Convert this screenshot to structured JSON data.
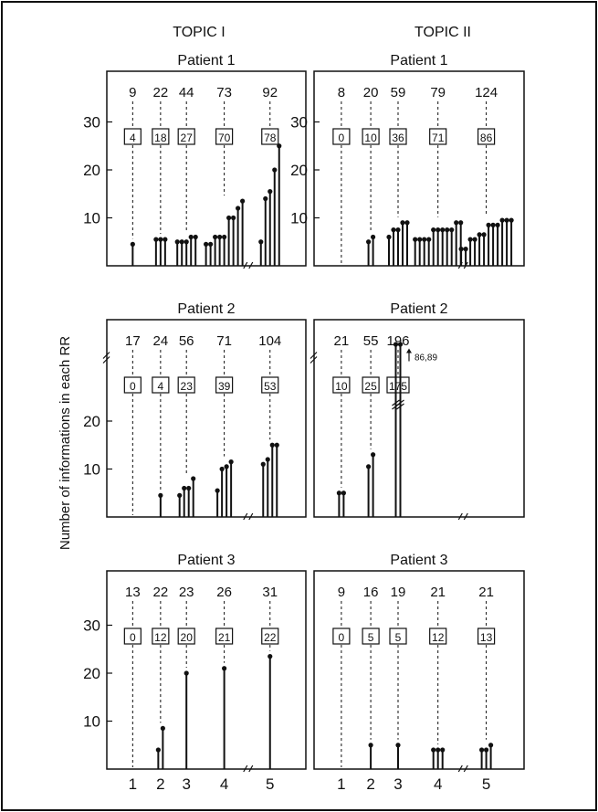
{
  "figure": {
    "ylabel": "Number of informations in each RR",
    "columns": [
      "TOPIC I",
      "TOPIC II"
    ],
    "x_ticks": [
      "1",
      "2",
      "3",
      "4",
      "5"
    ]
  },
  "chart_data": [
    {
      "type": "stem",
      "topic": "TOPIC I",
      "title": "Patient 1",
      "yticks": [
        10,
        20,
        30
      ],
      "ylim": [
        0,
        40
      ],
      "groups": [
        {
          "x": 1,
          "top": "9",
          "box": "4",
          "values": [
            4.5
          ]
        },
        {
          "x": 2,
          "top": "22",
          "box": "18",
          "values": [
            5.5,
            5.5,
            5.5
          ]
        },
        {
          "x": 3,
          "top": "44",
          "box": "27",
          "values": [
            5,
            5,
            5,
            6,
            6
          ]
        },
        {
          "x": 4,
          "top": "73",
          "box": "70",
          "values": [
            4.5,
            4.5,
            6,
            6,
            6,
            10,
            10,
            12,
            13.5
          ]
        },
        {
          "x": 5,
          "top": "92",
          "box": "78",
          "values": [
            5,
            14,
            15.5,
            20,
            25
          ]
        }
      ]
    },
    {
      "type": "stem",
      "topic": "TOPIC II",
      "title": "Patient 1",
      "yticks": [
        10,
        20,
        30
      ],
      "ylim": [
        0,
        40
      ],
      "groups": [
        {
          "x": 1,
          "top": "8",
          "box": "0",
          "values": []
        },
        {
          "x": 2,
          "top": "20",
          "box": "10",
          "values": [
            5,
            6
          ]
        },
        {
          "x": 3,
          "top": "59",
          "box": "36",
          "values": [
            6,
            7.5,
            7.5,
            9,
            9
          ]
        },
        {
          "x": 4,
          "top": "79",
          "box": "71",
          "values": [
            5.5,
            5.5,
            5.5,
            5.5,
            7.5,
            7.5,
            7.5,
            7.5,
            7.5,
            9,
            9
          ]
        },
        {
          "x": 5,
          "top": "124",
          "box": "86",
          "values": [
            3.5,
            3.5,
            5.5,
            5.5,
            6.5,
            6.5,
            8.5,
            8.5,
            8.5,
            9.5,
            9.5,
            9.5
          ]
        }
      ]
    },
    {
      "type": "stem",
      "topic": "TOPIC I",
      "title": "Patient 2",
      "yticks": [
        10,
        20
      ],
      "ylim": [
        0,
        40
      ],
      "axis_break": true,
      "groups": [
        {
          "x": 1,
          "top": "17",
          "box": "0",
          "values": []
        },
        {
          "x": 2,
          "top": "24",
          "box": "4",
          "values": [
            4.5
          ]
        },
        {
          "x": 3,
          "top": "56",
          "box": "23",
          "values": [
            4.5,
            6,
            6,
            8
          ]
        },
        {
          "x": 4,
          "top": "71",
          "box": "39",
          "values": [
            5.5,
            10,
            10.5,
            11.5
          ]
        },
        {
          "x": 5,
          "top": "104",
          "box": "53",
          "values": [
            11,
            12,
            15,
            15
          ]
        }
      ]
    },
    {
      "type": "stem",
      "topic": "TOPIC II",
      "title": "Patient 2",
      "yticks": [],
      "ylim": [
        0,
        40
      ],
      "axis_break": true,
      "annotation": "86,89",
      "groups": [
        {
          "x": 1,
          "top": "21",
          "box": "10",
          "values": [
            5,
            5
          ]
        },
        {
          "x": 2,
          "top": "55",
          "box": "25",
          "values": [
            10.5,
            13
          ]
        },
        {
          "x": 3,
          "top": "196",
          "box": "175",
          "values": [
            86,
            89
          ]
        }
      ]
    },
    {
      "type": "stem",
      "topic": "TOPIC I",
      "title": "Patient 3",
      "yticks": [
        10,
        20,
        30
      ],
      "ylim": [
        0,
        40
      ],
      "groups": [
        {
          "x": 1,
          "top": "13",
          "box": "0",
          "values": []
        },
        {
          "x": 2,
          "top": "22",
          "box": "12",
          "values": [
            4,
            8.5
          ]
        },
        {
          "x": 3,
          "top": "23",
          "box": "20",
          "values": [
            20
          ]
        },
        {
          "x": 4,
          "top": "26",
          "box": "21",
          "values": [
            21
          ]
        },
        {
          "x": 5,
          "top": "31",
          "box": "22",
          "values": [
            23.5
          ]
        }
      ]
    },
    {
      "type": "stem",
      "topic": "TOPIC II",
      "title": "Patient 3",
      "yticks": [],
      "ylim": [
        0,
        40
      ],
      "groups": [
        {
          "x": 1,
          "top": "9",
          "box": "0",
          "values": []
        },
        {
          "x": 2,
          "top": "16",
          "box": "5",
          "values": [
            5
          ]
        },
        {
          "x": 3,
          "top": "19",
          "box": "5",
          "values": [
            5
          ]
        },
        {
          "x": 4,
          "top": "21",
          "box": "12",
          "values": [
            4,
            4,
            4
          ]
        },
        {
          "x": 5,
          "top": "21",
          "box": "13",
          "values": [
            4,
            4,
            5
          ]
        }
      ]
    }
  ]
}
